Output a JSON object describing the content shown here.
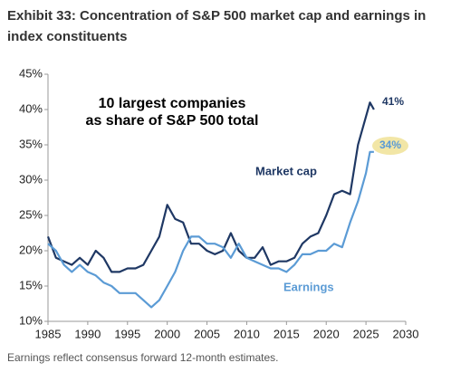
{
  "chart_data": {
    "type": "line",
    "title": "Exhibit 33: Concentration of S&P 500 market cap and earnings in index constituents",
    "annotations": [
      "10 largest companies",
      "as share of S&P 500 total",
      "Market cap",
      "Earnings",
      "41%",
      "34%"
    ],
    "footnote": "Earnings reflect consensus forward 12-month estimates.",
    "x": [
      1985,
      1986,
      1987,
      1988,
      1989,
      1990,
      1991,
      1992,
      1993,
      1994,
      1995,
      1996,
      1997,
      1998,
      1999,
      2000,
      2001,
      2002,
      2003,
      2004,
      2005,
      2006,
      2007,
      2008,
      2009,
      2010,
      2011,
      2012,
      2013,
      2014,
      2015,
      2016,
      2017,
      2018,
      2019,
      2020,
      2021,
      2022,
      2023,
      2024,
      2025,
      2025.5,
      2026
    ],
    "series": [
      {
        "name": "Market cap",
        "color": "#1f3864",
        "values": [
          22,
          19,
          18.5,
          18,
          19,
          18,
          20,
          19,
          17,
          17,
          17.5,
          17.5,
          18,
          20,
          22,
          26.5,
          24.5,
          24,
          21,
          21,
          20,
          19.5,
          20,
          22.5,
          20,
          19,
          19,
          20.5,
          18,
          18.5,
          18.5,
          19,
          21,
          22,
          22.5,
          25,
          28,
          28.5,
          28,
          35,
          39,
          41,
          40
        ]
      },
      {
        "name": "Earnings",
        "color": "#5b9bd5",
        "values": [
          21,
          20,
          18,
          17,
          18,
          17,
          16.5,
          15.5,
          15,
          14,
          14,
          14,
          13,
          12,
          13,
          15,
          17,
          20,
          22,
          22,
          21,
          21,
          20.5,
          19,
          21,
          19,
          18.5,
          18,
          17.5,
          17.5,
          17,
          18,
          19.5,
          19.5,
          20,
          20,
          21,
          20.5,
          24,
          27,
          31,
          34,
          34
        ]
      }
    ],
    "xlim": [
      1985,
      2030
    ],
    "xticks": [
      1985,
      1990,
      1995,
      2000,
      2005,
      2010,
      2015,
      2020,
      2025,
      2030
    ],
    "ylim": [
      10,
      45
    ],
    "yticks": [
      {
        "value": 10,
        "label": "10%"
      },
      {
        "value": 15,
        "label": "15%"
      },
      {
        "value": 20,
        "label": "20%"
      },
      {
        "value": 25,
        "label": "25%"
      },
      {
        "value": 30,
        "label": "30%"
      },
      {
        "value": 35,
        "label": "35%"
      },
      {
        "value": 40,
        "label": "40%"
      },
      {
        "value": 45,
        "label": "45%"
      }
    ],
    "grid": false
  }
}
